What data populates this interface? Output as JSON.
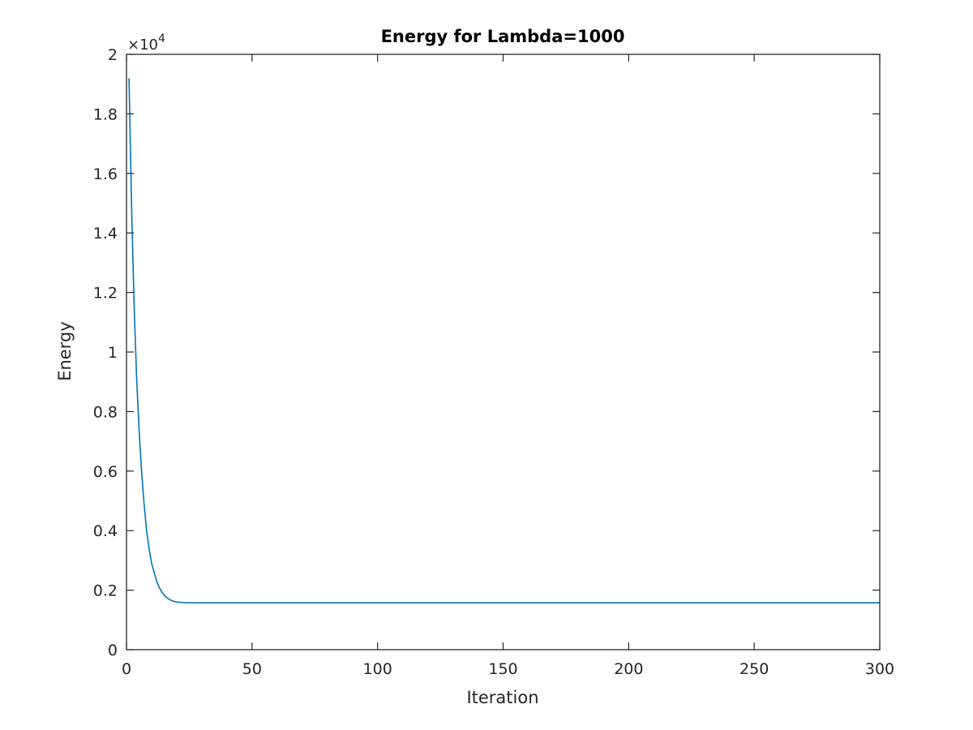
{
  "chart_data": {
    "type": "line",
    "title": "Energy for Lambda=1000",
    "xlabel": "Iteration",
    "ylabel": "Energy",
    "xlim": [
      0,
      300
    ],
    "ylim": [
      0,
      2
    ],
    "y_multiplier_label": "×10",
    "y_multiplier_exponent": "4",
    "x_ticks": [
      0,
      50,
      100,
      150,
      200,
      250,
      300
    ],
    "x_tick_labels": [
      "0",
      "50",
      "100",
      "150",
      "200",
      "250",
      "300"
    ],
    "y_ticks": [
      0,
      0.2,
      0.4,
      0.6,
      0.8,
      1,
      1.2,
      1.4,
      1.6,
      1.8,
      2
    ],
    "y_tick_labels": [
      "0",
      "0.2",
      "0.4",
      "0.6",
      "0.8",
      "1",
      "1.2",
      "1.4",
      "1.6",
      "1.8",
      "2"
    ],
    "grid": false,
    "box": true,
    "series": [
      {
        "color": "#0072BD",
        "x": [
          1,
          2,
          3,
          4,
          5,
          6,
          7,
          8,
          9,
          10,
          11,
          12,
          13,
          14,
          15,
          16,
          17,
          18,
          19,
          20,
          21,
          22,
          23,
          24,
          25,
          26,
          27,
          28,
          30,
          35,
          40,
          50,
          75,
          100,
          150,
          200,
          250,
          300
        ],
        "values": [
          1.92,
          1.5,
          1.17,
          0.92,
          0.74,
          0.6,
          0.49,
          0.4,
          0.34,
          0.29,
          0.26,
          0.23,
          0.21,
          0.195,
          0.183,
          0.175,
          0.169,
          0.165,
          0.162,
          0.1605,
          0.1595,
          0.1588,
          0.1583,
          0.158,
          0.1578,
          0.1577,
          0.1576,
          0.1575,
          0.1575,
          0.1575,
          0.1575,
          0.1575,
          0.1575,
          0.1575,
          0.1575,
          0.1575,
          0.1575,
          0.1575
        ]
      }
    ]
  }
}
